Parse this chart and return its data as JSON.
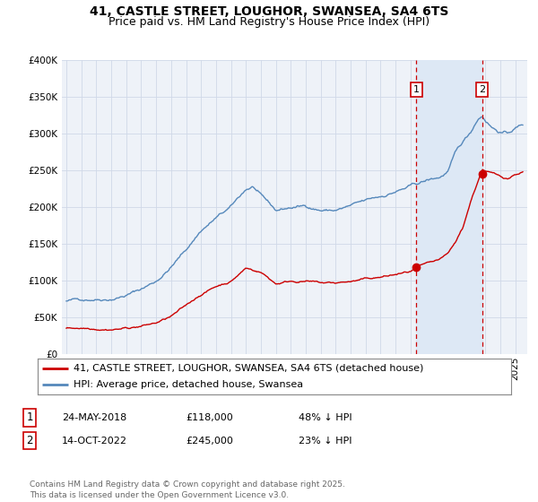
{
  "title": "41, CASTLE STREET, LOUGHOR, SWANSEA, SA4 6TS",
  "subtitle": "Price paid vs. HM Land Registry's House Price Index (HPI)",
  "ylim": [
    0,
    400000
  ],
  "xlim_start": 1994.7,
  "xlim_end": 2025.8,
  "background_color": "#ffffff",
  "plot_bg_color": "#eef2f8",
  "grid_color": "#d0d8e8",
  "hpi_line_color": "#5588bb",
  "property_line_color": "#cc0000",
  "sale1_date": 2018.39,
  "sale1_price": 118000,
  "sale1_label": "1",
  "sale2_date": 2022.79,
  "sale2_price": 245000,
  "sale2_label": "2",
  "vline_color": "#cc0000",
  "shade_color": "#dde8f5",
  "legend_line1": "41, CASTLE STREET, LOUGHOR, SWANSEA, SA4 6TS (detached house)",
  "legend_line2": "HPI: Average price, detached house, Swansea",
  "annotation1_date": "24-MAY-2018",
  "annotation1_price": "£118,000",
  "annotation1_hpi": "48% ↓ HPI",
  "annotation2_date": "14-OCT-2022",
  "annotation2_price": "£245,000",
  "annotation2_hpi": "23% ↓ HPI",
  "footer": "Contains HM Land Registry data © Crown copyright and database right 2025.\nThis data is licensed under the Open Government Licence v3.0.",
  "title_fontsize": 10,
  "subtitle_fontsize": 9,
  "tick_fontsize": 7.5,
  "legend_fontsize": 8,
  "annotation_fontsize": 8,
  "footer_fontsize": 6.5
}
